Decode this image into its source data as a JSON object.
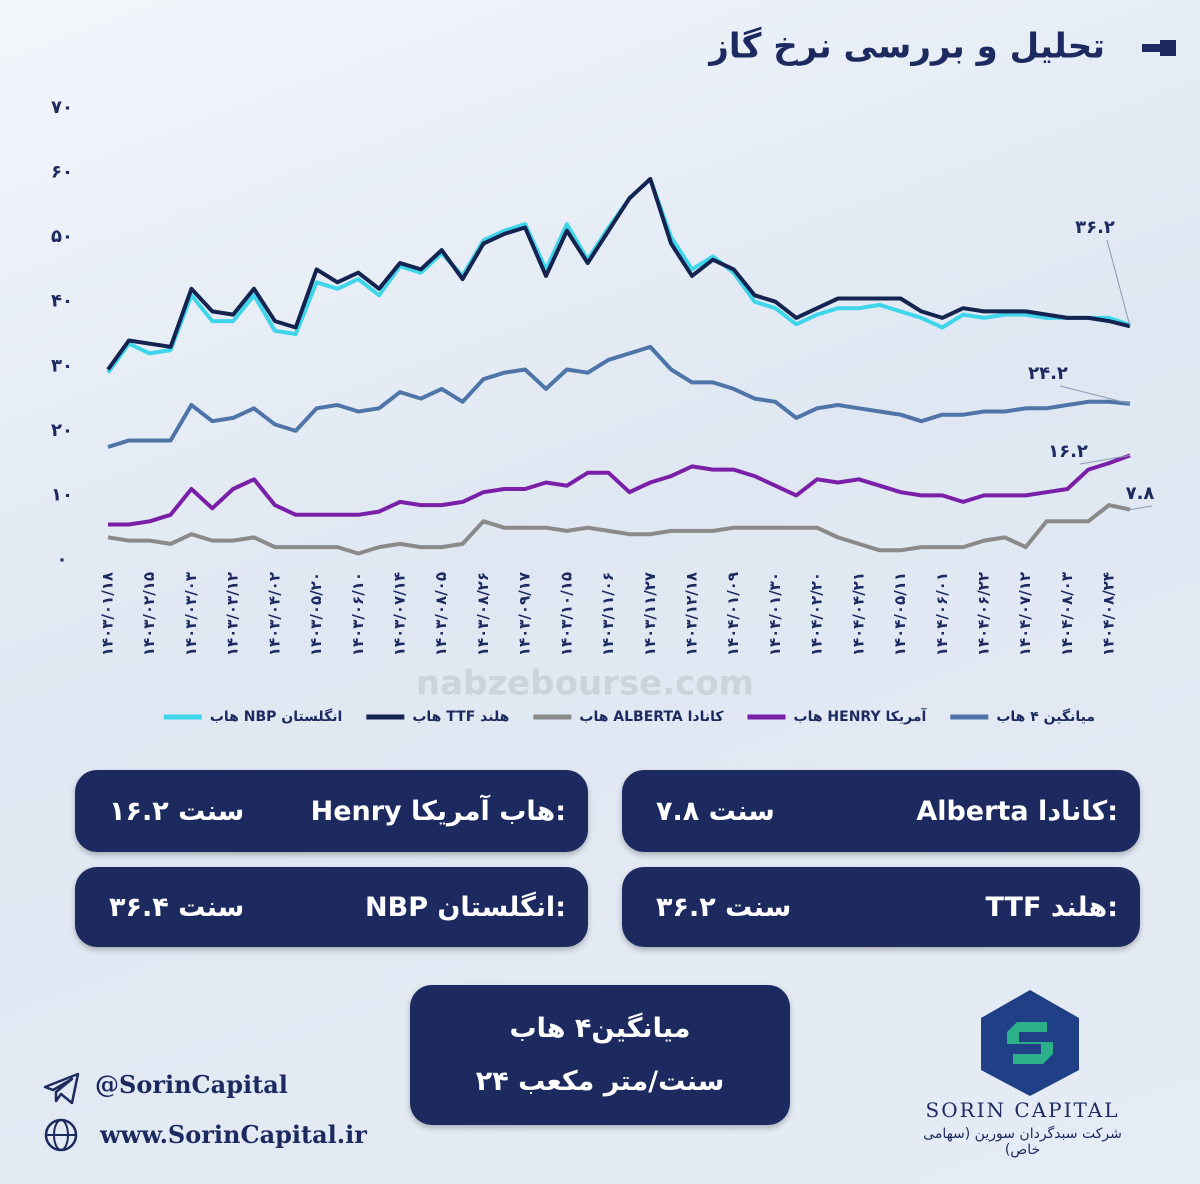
{
  "chart_data": {
    "type": "line",
    "title": "تحلیل و بررسی نرخ گاز",
    "categories": [
      "۱۴۰۳/۰۱/۱۸",
      null,
      "۱۴۰۳/۰۲/۱۵",
      null,
      "۱۴۰۳/۰۳/۰۳",
      null,
      "۱۴۰۳/۰۳/۱۲",
      null,
      "۱۴۰۳/۰۴/۰۲",
      null,
      "۱۴۰۳/۰۵/۲۰",
      null,
      "۱۴۰۳/۰۶/۱۰",
      null,
      "۱۴۰۳/۰۷/۱۴",
      null,
      "۱۴۰۳/۰۸/۰۵",
      null,
      "۱۴۰۳/۰۸/۲۶",
      null,
      "۱۴۰۳/۰۹/۱۷",
      null,
      "۱۴۰۳/۱۰/۱۵",
      null,
      "۱۴۰۳/۱۱/۰۶",
      null,
      "۱۴۰۳/۱۱/۲۷",
      null,
      "۱۴۰۳/۱۲/۱۸",
      null,
      "۱۴۰۴/۰۱/۰۹",
      null,
      "۱۴۰۴/۰۱/۳۰",
      null,
      "۱۴۰۴/۰۲/۲۰",
      null,
      "۱۴۰۴/۰۴/۲۱",
      null,
      "۱۴۰۴/۰۵/۱۱",
      null,
      "۱۴۰۴/۰۶/۰۱",
      null,
      "۱۴۰۴/۰۶/۲۲",
      null,
      "۱۴۰۴/۰۷/۱۲",
      null,
      "۱۴۰۴/۰۸/۰۳",
      null,
      "۱۴۰۴/۰۸/۲۴",
      null
    ],
    "series": [
      {
        "name": "هاب NBP انگلستان",
        "color": "#3fd6ec",
        "values": [
          29,
          33.5,
          32,
          32.5,
          41,
          37,
          37,
          41,
          35.5,
          35,
          43,
          42,
          43.5,
          41,
          45.5,
          44.5,
          47.5,
          44,
          49.5,
          51,
          52,
          45,
          52,
          46.5,
          51.5,
          56,
          59,
          50,
          45,
          47,
          44.5,
          40,
          39,
          36.5,
          38,
          39,
          39,
          39.5,
          38.5,
          37.5,
          36,
          38,
          37.5,
          38,
          38,
          37.5,
          37.5,
          37.5,
          37.5,
          36.4
        ]
      },
      {
        "name": "هاب TTF هلند",
        "color": "#14234f",
        "end_label": "۳۶.۲",
        "values": [
          29.5,
          34,
          33.5,
          33,
          42,
          38.5,
          38,
          42,
          37,
          36,
          45,
          43,
          44.5,
          42,
          46,
          45,
          48,
          43.5,
          49,
          50.5,
          51.5,
          44,
          51,
          46,
          51,
          56,
          59,
          49,
          44,
          46.5,
          45,
          41,
          40,
          37.5,
          39,
          40.5,
          40.5,
          40.5,
          40.5,
          38.5,
          37.5,
          39,
          38.5,
          38.5,
          38.5,
          38,
          37.5,
          37.5,
          37,
          36.2
        ]
      },
      {
        "name": "هاب ALBERTA کانادا",
        "color": "#8a8a8a",
        "end_label": "۷.۸",
        "values": [
          3.5,
          3,
          3,
          2.5,
          4,
          3,
          3,
          3.5,
          2,
          2,
          2,
          2,
          1,
          2,
          2.5,
          2,
          2,
          2.5,
          6,
          5,
          5,
          5,
          4.5,
          5,
          4.5,
          4,
          4,
          4.5,
          4.5,
          4.5,
          5,
          5,
          5,
          5,
          5,
          3.5,
          2.5,
          1.5,
          1.5,
          2,
          2,
          2,
          3,
          3.5,
          2,
          6,
          6,
          6,
          8.5,
          7.8
        ]
      },
      {
        "name": "هاب HENRY آمریکا",
        "color": "#7a1fa8",
        "end_label": "۱۶.۲",
        "values": [
          5.5,
          5.5,
          6,
          7,
          11,
          8,
          11,
          12.5,
          8.5,
          7,
          7,
          7,
          7,
          7.5,
          9,
          8.5,
          8.5,
          9,
          10.5,
          11,
          11,
          12,
          11.5,
          13.5,
          13.5,
          10.5,
          12,
          13,
          14.5,
          14,
          14,
          13,
          11.5,
          10,
          12.5,
          12,
          12.5,
          11.5,
          10.5,
          10,
          10,
          9,
          10,
          10,
          10,
          10.5,
          11,
          14,
          15,
          16.2
        ]
      },
      {
        "name": "میانگین ۴ هاب",
        "color": "#4f74a8",
        "end_label": "۲۴.۲",
        "values": [
          17.5,
          18.5,
          18.5,
          18.5,
          24,
          21.5,
          22,
          23.5,
          21,
          20,
          23.5,
          24,
          23,
          23.5,
          26,
          25,
          26.5,
          24.5,
          28,
          29,
          29.5,
          26.5,
          29.5,
          29,
          31,
          32,
          33,
          29.5,
          27.5,
          27.5,
          26.5,
          25,
          24.5,
          22,
          23.5,
          24,
          23.5,
          23,
          22.5,
          21.5,
          22.5,
          22.5,
          23,
          23,
          23.5,
          23.5,
          24,
          24.5,
          24.5,
          24.2
        ]
      }
    ],
    "ylim": [
      0,
      70
    ],
    "yticks": [
      {
        "value": 0,
        "label": "۰"
      },
      {
        "value": 10,
        "label": "۱۰"
      },
      {
        "value": 20,
        "label": "۲۰"
      },
      {
        "value": 30,
        "label": "۳۰"
      },
      {
        "value": 40,
        "label": "۴۰"
      },
      {
        "value": 50,
        "label": "۵۰"
      },
      {
        "value": 60,
        "label": "۶۰"
      },
      {
        "value": 70,
        "label": "۷۰"
      }
    ],
    "grid": false,
    "legend": "bottom",
    "watermark": "nabzebourse.com"
  },
  "cards": [
    {
      "label": "Henry هاب آمریکا:",
      "value": "۱۶.۲ سنت"
    },
    {
      "label": "Alberta کانادا:",
      "value": "۷.۸ سنت"
    },
    {
      "label": "NBP انگلستان:",
      "value": "۳۶.۴ سنت"
    },
    {
      "label": "TTF هلند:",
      "value": "۳۶.۲ سنت"
    }
  ],
  "average_card": {
    "title": "میانگین۴ هاب",
    "value": "۲۴ سنت/متر مکعب"
  },
  "footer": {
    "telegram": "@SorinCapital",
    "website": "www.SorinCapital.ir",
    "company": "SORIN CAPITAL",
    "company_fa": "شرکت سبدگردان سورین (سهامی خاص)"
  }
}
